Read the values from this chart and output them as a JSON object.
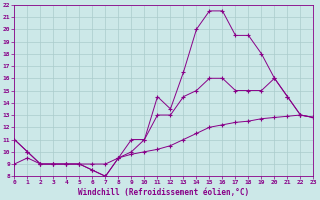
{
  "xlabel": "Windchill (Refroidissement éolien,°C)",
  "xlim": [
    0,
    23
  ],
  "ylim": [
    8,
    22
  ],
  "yticks": [
    8,
    9,
    10,
    11,
    12,
    13,
    14,
    15,
    16,
    17,
    18,
    19,
    20,
    21,
    22
  ],
  "xticks": [
    0,
    1,
    2,
    3,
    4,
    5,
    6,
    7,
    8,
    9,
    10,
    11,
    12,
    13,
    14,
    15,
    16,
    17,
    18,
    19,
    20,
    21,
    22,
    23
  ],
  "bg_color": "#cce8e8",
  "grid_color": "#aacccc",
  "line_color": "#880088",
  "lines": [
    {
      "x": [
        0,
        1,
        2,
        3,
        4,
        5,
        6,
        7,
        8,
        9,
        10,
        11,
        12,
        13,
        14,
        15,
        16,
        17,
        18,
        19,
        20,
        21,
        22,
        23
      ],
      "y": [
        11,
        10,
        9.0,
        9.0,
        9.0,
        9.0,
        8.5,
        8.0,
        9.5,
        11,
        11,
        14.5,
        13.5,
        16.5,
        20,
        21.5,
        21.5,
        19.5,
        19.5,
        18,
        16,
        14.5,
        13,
        12.8
      ]
    },
    {
      "x": [
        0,
        1,
        2,
        3,
        4,
        5,
        6,
        7,
        8,
        9,
        10,
        11,
        12,
        13,
        14,
        15,
        16,
        17,
        18,
        19,
        20,
        21,
        22,
        23
      ],
      "y": [
        11,
        10,
        9.0,
        9.0,
        9.0,
        9.0,
        8.5,
        8.0,
        9.5,
        10,
        11,
        13.0,
        13.0,
        14.5,
        15,
        16.0,
        16.0,
        15,
        15,
        15.0,
        16.0,
        14.5,
        13,
        12.8
      ]
    },
    {
      "x": [
        0,
        1,
        2,
        3,
        4,
        5,
        6,
        7,
        8,
        9,
        10,
        11,
        12,
        13,
        14,
        15,
        16,
        17,
        18,
        19,
        20,
        21,
        22,
        23
      ],
      "y": [
        9.0,
        9.5,
        9.0,
        9.0,
        9.0,
        9.0,
        9.0,
        9.0,
        9.5,
        9.8,
        10.0,
        10.2,
        10.5,
        11.0,
        11.5,
        12.0,
        12.2,
        12.4,
        12.5,
        12.7,
        12.8,
        12.9,
        13.0,
        12.8
      ]
    }
  ]
}
